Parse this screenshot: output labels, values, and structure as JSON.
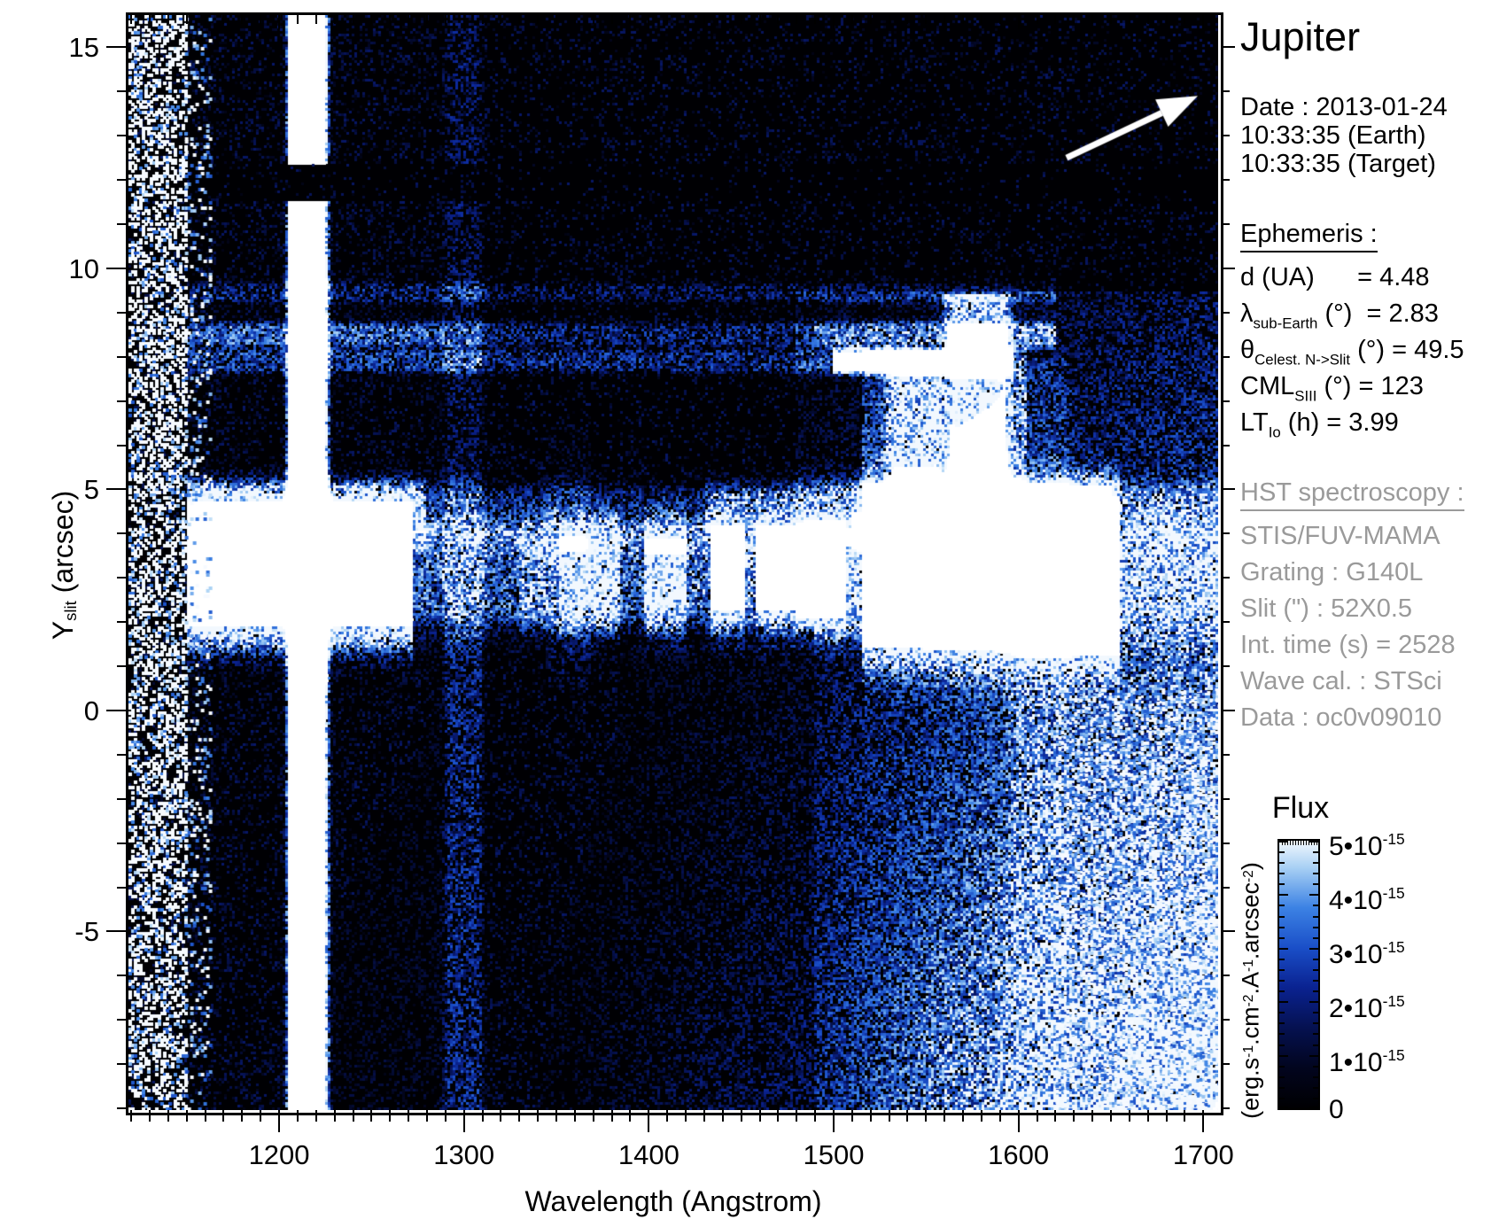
{
  "header": {
    "title": "Jupiter",
    "date_line": "Date : 2013-01-24",
    "time_earth": "10:33:35 (Earth)",
    "time_target": "10:33:35 (Target)"
  },
  "ephemeris": {
    "heading": "Ephemeris :",
    "rows": [
      [
        {
          "t": "d (UA)      = 4.48"
        }
      ],
      [
        {
          "t": "λ"
        },
        {
          "sub": "sub-Earth"
        },
        {
          "t": " (°)  = 2.83"
        }
      ],
      [
        {
          "t": "θ"
        },
        {
          "sub": "Celest. N->Slit"
        },
        {
          "t": " (°) = 49.5"
        }
      ],
      [
        {
          "t": "CML"
        },
        {
          "sub": "SIII"
        },
        {
          "t": " (°) = 123"
        }
      ],
      [
        {
          "t": "LT"
        },
        {
          "sub": "Io"
        },
        {
          "t": " (h) = 3.99"
        }
      ]
    ]
  },
  "hst": {
    "heading": "HST spectroscopy :",
    "rows": [
      "STIS/FUV-MAMA",
      "Grating : G140L",
      "Slit (\") : 52X0.5",
      "Int. time (s) = 2528",
      "Wave cal. : STSci",
      "Data : oc0v09010"
    ]
  },
  "colorbar": {
    "title": "Flux",
    "unit": [
      {
        "t": "(erg.s"
      },
      {
        "sup": "-1"
      },
      {
        "t": ".cm"
      },
      {
        "sup": "-2"
      },
      {
        "t": ".A"
      },
      {
        "sup": "-1"
      },
      {
        "t": ".arcsec"
      },
      {
        "sup": "-2"
      },
      {
        "t": ")"
      }
    ],
    "ticks": [
      [
        {
          "t": "5•10"
        },
        {
          "sup": "-15"
        }
      ],
      [
        {
          "t": "4•10"
        },
        {
          "sup": "-15"
        }
      ],
      [
        {
          "t": "3•10"
        },
        {
          "sup": "-15"
        }
      ],
      [
        {
          "t": "2•10"
        },
        {
          "sup": "-15"
        }
      ],
      [
        {
          "t": "1•10"
        },
        {
          "sup": "-15"
        }
      ],
      [
        {
          "t": "0"
        }
      ]
    ],
    "gradient": [
      [
        0.0,
        "#000002"
      ],
      [
        0.15,
        "#02051e"
      ],
      [
        0.3,
        "#051150"
      ],
      [
        0.45,
        "#0a2290"
      ],
      [
        0.6,
        "#1a4fc8"
      ],
      [
        0.75,
        "#3c82e4"
      ],
      [
        0.9,
        "#a8d0f4"
      ],
      [
        1.0,
        "#f2f8fe"
      ]
    ]
  },
  "chart_data": {
    "type": "heatmap",
    "title": "Jupiter",
    "xlabel": "Wavelength (Angstrom)",
    "ylabel_rich": [
      {
        "t": "Y"
      },
      {
        "sub": "slit"
      },
      {
        "t": " (arcsec)"
      }
    ],
    "xlim": [
      1118.5,
      1708
    ],
    "ylim": [
      -9.04,
      15.73
    ],
    "x_ticks_major": [
      1200,
      1300,
      1400,
      1500,
      1600,
      1700
    ],
    "x_minor_step": 10,
    "y_ticks_major": [
      15,
      10,
      5,
      0,
      -5
    ],
    "y_minor_step": 1,
    "flux_range": [
      0,
      5e-15
    ],
    "ambient": 0.08,
    "features": [
      {
        "type": "bilinear",
        "name": "upper-left-halo",
        "x": [
          1150,
          1290
        ],
        "y": [
          4,
          15.7
        ],
        "tl": 0.05,
        "tr": 0.05,
        "bl": 0.07,
        "br": 0.07
      },
      {
        "type": "bilinear",
        "name": "right-noise-upper",
        "x": [
          1480,
          1708
        ],
        "y": [
          2,
          9.5
        ],
        "tl": 0.08,
        "tr": 0.22,
        "bl": 0.16,
        "br": 0.4
      },
      {
        "type": "bilinear",
        "name": "right-noise-lower",
        "x": [
          1490,
          1708
        ],
        "y": [
          -9.04,
          2
        ],
        "tl": 0.18,
        "tr": 0.5,
        "bl": 0.3,
        "br": 1.05
      },
      {
        "type": "bilinear",
        "name": "mid-bottom-faint",
        "x": [
          1310,
          1490
        ],
        "y": [
          -9.04,
          1.5
        ],
        "tl": 0.02,
        "tr": 0.12,
        "bl": 0.04,
        "br": 0.22
      },
      {
        "type": "bilinear",
        "name": "left-bottom-faint",
        "x": [
          1150,
          1310
        ],
        "y": [
          -9.04,
          1.8
        ],
        "tl": 0.05,
        "tr": 0.07,
        "bl": 0.06,
        "br": 0.09
      },
      {
        "type": "bilinear",
        "name": "complex-base-1550",
        "x": [
          1515,
          1605
        ],
        "y": [
          1.5,
          8.2
        ],
        "tl": 0.22,
        "tr": 0.22,
        "bl": 0.28,
        "br": 0.28
      },
      {
        "type": "band_v",
        "name": "lyman-alpha-airglow-1216",
        "xc": 1215.5,
        "hw": 8.5,
        "fuzz": 4,
        "y": [
          -9.04,
          15.73
        ],
        "i": 1.45,
        "gaps": [
          [
            11.55,
            12.38
          ]
        ]
      },
      {
        "type": "band_v",
        "name": "oi-airglow-1304",
        "xc": 1300,
        "hw": 8,
        "fuzz": 5,
        "y": [
          -9.04,
          15.73
        ],
        "i": 0.2
      },
      {
        "type": "band_v",
        "name": "ci-1356-faint",
        "xc": 1357,
        "hw": 9,
        "fuzz": 5,
        "y": [
          0.5,
          6.5
        ],
        "i": 0.1
      },
      {
        "type": "band_v",
        "name": "complex-column-1544",
        "xc": 1544,
        "hw": 11,
        "fuzz": 7,
        "y": [
          3.4,
          8.0
        ],
        "i": 0.5
      },
      {
        "type": "band_v",
        "name": "complex-column-1578",
        "xc": 1578,
        "hw": 14,
        "fuzz": 7,
        "y": [
          3.4,
          9.4
        ],
        "i": 0.62
      },
      {
        "type": "band_v",
        "name": "right-noise-lane-1612",
        "xc": 1612,
        "hw": 12,
        "fuzz": 8,
        "y": [
          -9.04,
          8
        ],
        "i": 0.12
      },
      {
        "type": "band_h",
        "name": "jupiter-disk-band",
        "yc": 3.0,
        "hw": 0.6,
        "halo": 1.0,
        "segs": [
          [
            1150,
            1272,
            1.2,
            0.8,
            1.15
          ],
          [
            1272,
            1330,
            0.45
          ],
          [
            1330,
            1352,
            0.62
          ],
          [
            1352,
            1385,
            0.88
          ],
          [
            1385,
            1397,
            0.45
          ],
          [
            1397,
            1420,
            1.0
          ],
          [
            1420,
            1434,
            0.5
          ],
          [
            1434,
            1452,
            1.1
          ],
          [
            1452,
            1458,
            0.6
          ],
          [
            1458,
            1507,
            1.1
          ],
          [
            1507,
            1516,
            0.7
          ],
          [
            1516,
            1655,
            1.2,
            0.95,
            1.45
          ],
          [
            1655,
            1708,
            0.45
          ]
        ]
      },
      {
        "type": "band_h",
        "name": "upper-disk-band",
        "yc": 4.45,
        "hw": 0.38,
        "halo": 0.55,
        "segs": [
          [
            1150,
            1280,
            0.7
          ],
          [
            1280,
            1430,
            0.28
          ],
          [
            1430,
            1510,
            0.5
          ],
          [
            1510,
            1650,
            0.75
          ],
          [
            1650,
            1708,
            0.25
          ]
        ]
      },
      {
        "type": "band_h",
        "name": "aurora-streak-high",
        "yc": 9.45,
        "hw": 0.12,
        "halo": 0.18,
        "segs": [
          [
            1150,
            1620,
            0.22
          ]
        ]
      },
      {
        "type": "band_h",
        "name": "aurora-streak-mid",
        "yc": 8.5,
        "hw": 0.16,
        "halo": 0.22,
        "segs": [
          [
            1150,
            1290,
            0.38
          ],
          [
            1290,
            1490,
            0.28
          ],
          [
            1490,
            1620,
            0.4
          ]
        ]
      },
      {
        "type": "band_h",
        "name": "aurora-streak-bright",
        "yc": 7.9,
        "hw": 0.15,
        "halo": 0.2,
        "segs": [
          [
            1150,
            1500,
            0.3
          ],
          [
            1500,
            1597,
            1.1
          ]
        ]
      },
      {
        "type": "shade",
        "name": "detector-shadow-row",
        "x": [
          1118.5,
          1708
        ],
        "y": [
          11.55,
          12.38
        ],
        "f": 0.3
      },
      {
        "type": "speckle",
        "name": "detector-edge-speckle",
        "x": [
          1118.5,
          1149
        ],
        "y": [
          -9.04,
          15.73
        ],
        "density": 0.4,
        "white": 0.75
      },
      {
        "type": "speckle",
        "name": "detector-edge-fringe",
        "x": [
          1149,
          1162
        ],
        "y": [
          -9.04,
          15.73
        ],
        "density": 0.12,
        "white": 0.4
      },
      {
        "type": "speckle",
        "name": "far-right-speckle",
        "x": [
          1620,
          1708
        ],
        "y": [
          -9.04,
          0.5
        ],
        "density": 0.2,
        "white": 0.6
      },
      {
        "type": "arrow",
        "name": "sky-direction-arrow",
        "from": [
          1626,
          12.5
        ],
        "to": [
          1697,
          13.9
        ],
        "color": "#ffffff",
        "lw": 7
      }
    ]
  }
}
